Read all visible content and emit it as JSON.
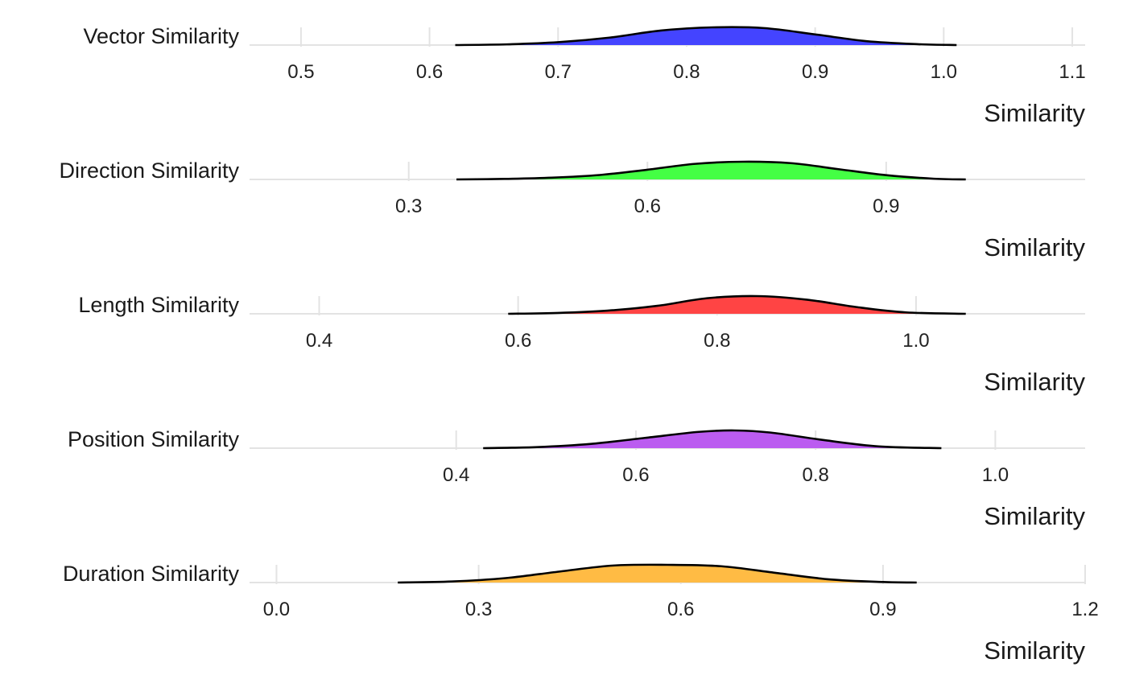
{
  "chart_data": [
    {
      "type": "area",
      "name": "Vector Similarity",
      "xlabel": "Similarity",
      "xlim": [
        0.46,
        1.11
      ],
      "ticks": [
        0.5,
        0.6,
        0.7,
        0.8,
        0.9,
        1.0,
        1.1
      ],
      "tick_labels": [
        "0.5",
        "0.6",
        "0.7",
        "0.8",
        "0.9",
        "1.0",
        "1.1"
      ],
      "color": "#4444ff",
      "density": {
        "x": [
          0.62,
          0.66,
          0.7,
          0.74,
          0.78,
          0.82,
          0.86,
          0.9,
          0.94,
          0.98,
          1.01
        ],
        "y": [
          0.0,
          0.04,
          0.16,
          0.42,
          0.82,
          1.0,
          0.96,
          0.6,
          0.22,
          0.05,
          0.0
        ]
      }
    },
    {
      "type": "area",
      "name": "Direction Similarity",
      "xlabel": "Similarity",
      "xlim": [
        0.1,
        1.15
      ],
      "ticks": [
        0.3,
        0.6,
        0.9
      ],
      "tick_labels": [
        "0.3",
        "0.6",
        "0.9"
      ],
      "color": "#44ff44",
      "density": {
        "x": [
          0.36,
          0.42,
          0.48,
          0.54,
          0.6,
          0.66,
          0.72,
          0.78,
          0.84,
          0.9,
          0.96,
          1.0
        ],
        "y": [
          0.0,
          0.03,
          0.1,
          0.25,
          0.55,
          0.88,
          1.0,
          0.92,
          0.58,
          0.24,
          0.04,
          0.0
        ]
      }
    },
    {
      "type": "area",
      "name": "Length Similarity",
      "xlabel": "Similarity",
      "xlim": [
        0.33,
        1.17
      ],
      "ticks": [
        0.4,
        0.6,
        0.8,
        1.0
      ],
      "tick_labels": [
        "0.4",
        "0.6",
        "0.8",
        "1.0"
      ],
      "color": "#ff4444",
      "density": {
        "x": [
          0.59,
          0.64,
          0.69,
          0.74,
          0.79,
          0.84,
          0.89,
          0.94,
          0.99,
          1.05
        ],
        "y": [
          0.0,
          0.05,
          0.18,
          0.45,
          0.88,
          1.0,
          0.8,
          0.38,
          0.08,
          0.0
        ]
      }
    },
    {
      "type": "area",
      "name": "Position Similarity",
      "xlabel": "Similarity",
      "xlim": [
        0.17,
        1.1
      ],
      "ticks": [
        0.4,
        0.6,
        0.8,
        1.0
      ],
      "tick_labels": [
        "0.4",
        "0.6",
        "0.8",
        "1.0"
      ],
      "color": "#bb5cf0",
      "density": {
        "x": [
          0.43,
          0.49,
          0.55,
          0.61,
          0.67,
          0.71,
          0.75,
          0.81,
          0.87,
          0.94
        ],
        "y": [
          0.0,
          0.06,
          0.24,
          0.58,
          0.92,
          1.0,
          0.88,
          0.45,
          0.1,
          0.0
        ]
      }
    },
    {
      "type": "area",
      "name": "Duration Similarity",
      "xlabel": "Similarity",
      "xlim": [
        -0.04,
        1.2
      ],
      "ticks": [
        0.0,
        0.3,
        0.6,
        0.9,
        1.2
      ],
      "tick_labels": [
        "0.0",
        "0.3",
        "0.6",
        "0.9",
        "1.2"
      ],
      "color": "#ffbb44",
      "density": {
        "x": [
          0.18,
          0.26,
          0.34,
          0.42,
          0.5,
          0.58,
          0.66,
          0.74,
          0.82,
          0.9,
          0.95
        ],
        "y": [
          0.0,
          0.06,
          0.25,
          0.62,
          0.96,
          1.0,
          0.92,
          0.55,
          0.18,
          0.03,
          0.0
        ]
      }
    }
  ]
}
